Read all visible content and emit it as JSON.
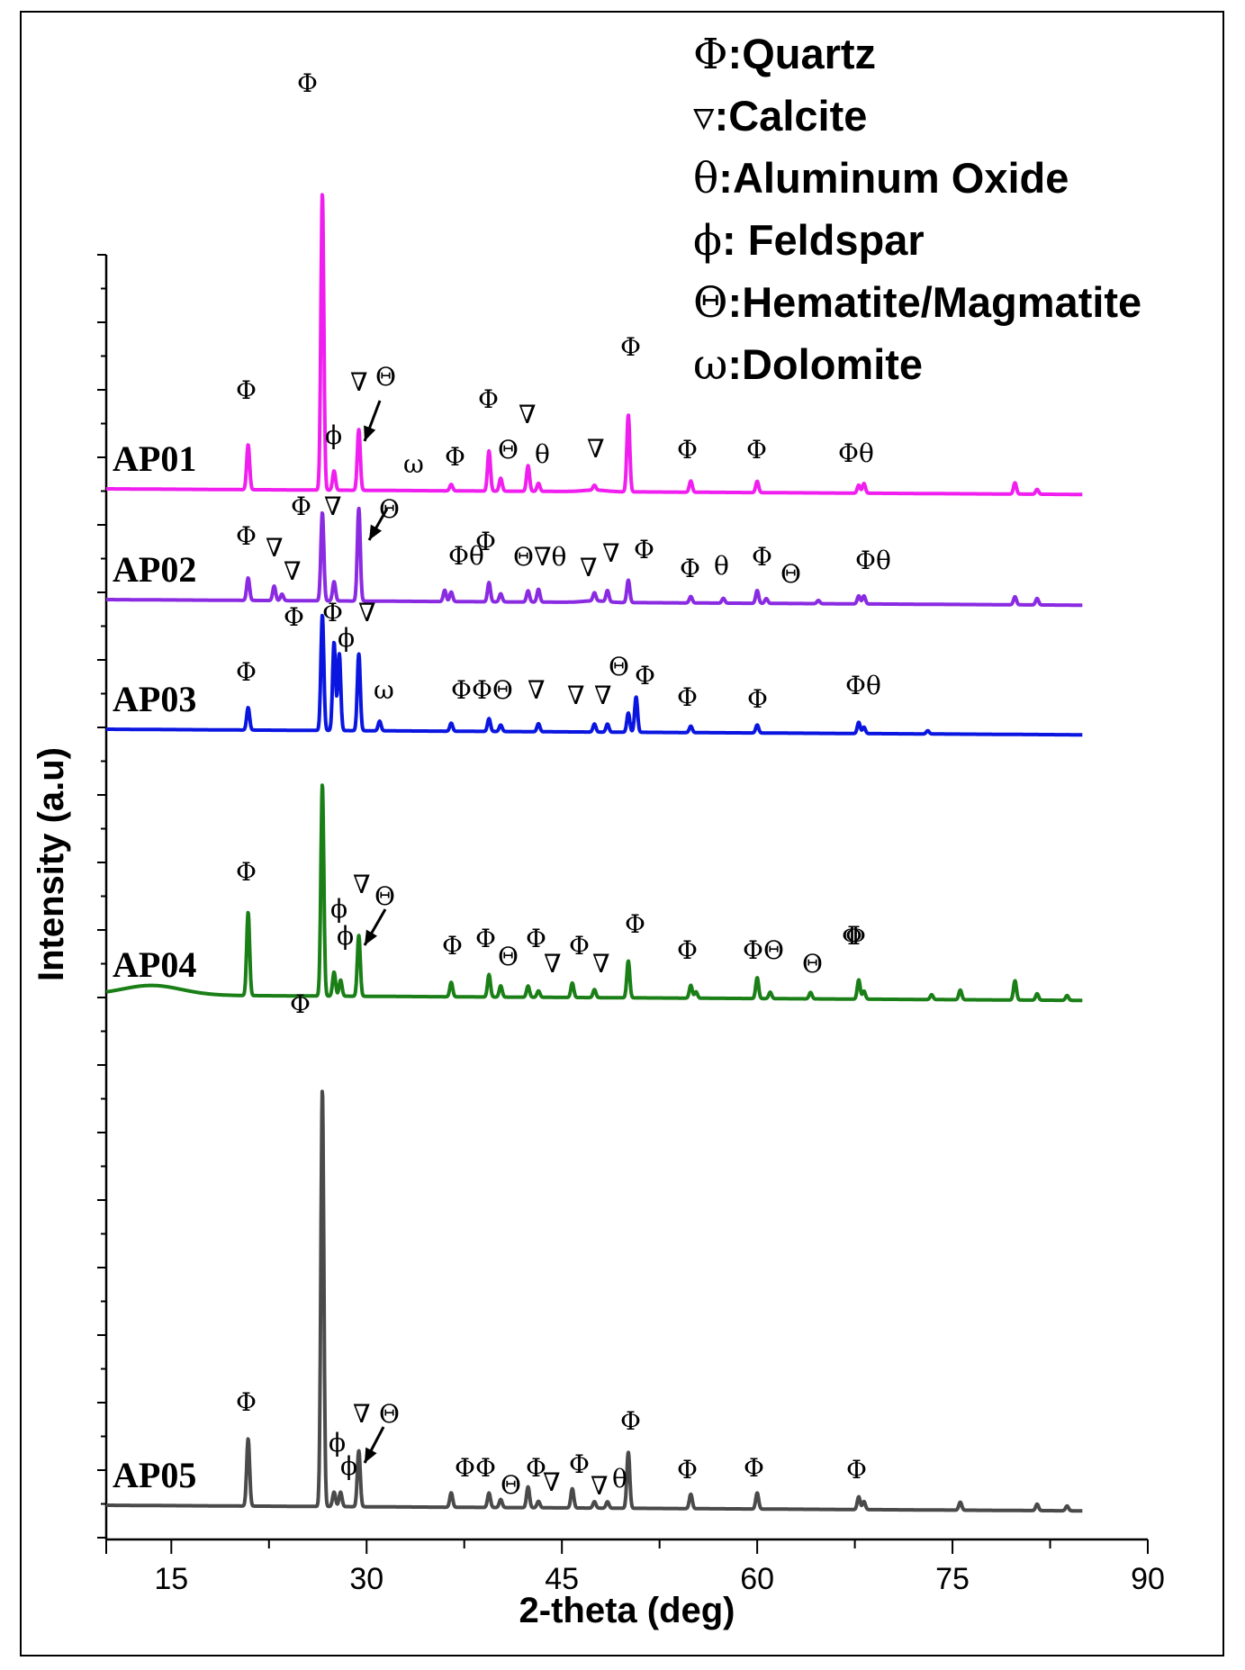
{
  "chart_data": {
    "type": "line",
    "xlabel": "2-theta (deg)",
    "ylabel": "Intensity (a.u)",
    "xlim": [
      10,
      90
    ],
    "xticks": [
      "15",
      "30",
      "45",
      "60",
      "75",
      "90"
    ],
    "grid": false,
    "legend": [
      {
        "symbol": "Φ",
        "text": ":Quartz"
      },
      {
        "symbol": "▿",
        "text": ":Calcite"
      },
      {
        "symbol": "θ",
        "text": ":Aluminum Oxide"
      },
      {
        "symbol": "ϕ",
        "text": ": Feldspar"
      },
      {
        "symbol": "Θ",
        "text": ":Hematite/Magmatite"
      },
      {
        "symbol": "ω",
        "text": ":Dolomite"
      }
    ],
    "series": [
      {
        "name": "AP01",
        "color": "#f01ff0",
        "baseline": 0.0,
        "peaks": [
          [
            20.9,
            0.28
          ],
          [
            26.6,
            1.85
          ],
          [
            27.5,
            0.12
          ],
          [
            29.4,
            0.38
          ],
          [
            36.5,
            0.04
          ],
          [
            39.4,
            0.25
          ],
          [
            40.3,
            0.08
          ],
          [
            42.4,
            0.16
          ],
          [
            43.2,
            0.05
          ],
          [
            47.5,
            0.03
          ],
          [
            50.1,
            0.48
          ],
          [
            54.9,
            0.07
          ],
          [
            60.0,
            0.07
          ],
          [
            67.8,
            0.05
          ],
          [
            68.2,
            0.06
          ],
          [
            79.8,
            0.07
          ],
          [
            81.5,
            0.03
          ]
        ]
      },
      {
        "name": "AP02",
        "color": "#8a2be2",
        "baseline": 0.0,
        "peaks": [
          [
            20.9,
            0.14
          ],
          [
            22.9,
            0.09
          ],
          [
            23.5,
            0.04
          ],
          [
            26.6,
            0.55
          ],
          [
            27.5,
            0.12
          ],
          [
            29.4,
            0.58
          ],
          [
            36.0,
            0.07
          ],
          [
            36.5,
            0.06
          ],
          [
            39.4,
            0.12
          ],
          [
            40.3,
            0.05
          ],
          [
            42.4,
            0.07
          ],
          [
            43.2,
            0.08
          ],
          [
            47.5,
            0.05
          ],
          [
            48.5,
            0.07
          ],
          [
            50.1,
            0.14
          ],
          [
            54.9,
            0.04
          ],
          [
            57.4,
            0.03
          ],
          [
            60.0,
            0.08
          ],
          [
            60.7,
            0.03
          ],
          [
            64.7,
            0.02
          ],
          [
            67.8,
            0.05
          ],
          [
            68.2,
            0.05
          ],
          [
            79.8,
            0.05
          ],
          [
            81.5,
            0.04
          ]
        ]
      },
      {
        "name": "AP03",
        "color": "#0a16e0",
        "baseline": 0.0,
        "peaks": [
          [
            20.9,
            0.14
          ],
          [
            26.6,
            0.72
          ],
          [
            27.5,
            0.55
          ],
          [
            27.9,
            0.48
          ],
          [
            29.4,
            0.48
          ],
          [
            31.0,
            0.06
          ],
          [
            36.5,
            0.05
          ],
          [
            39.4,
            0.08
          ],
          [
            40.3,
            0.04
          ],
          [
            43.2,
            0.05
          ],
          [
            47.5,
            0.05
          ],
          [
            48.5,
            0.05
          ],
          [
            50.1,
            0.12
          ],
          [
            50.7,
            0.22
          ],
          [
            54.9,
            0.04
          ],
          [
            60.0,
            0.05
          ],
          [
            67.8,
            0.07
          ],
          [
            68.2,
            0.04
          ],
          [
            73.1,
            0.02
          ]
        ]
      },
      {
        "name": "AP04",
        "color": "#1a7f16",
        "baseline": 0.0,
        "peaks": [
          [
            20.9,
            0.52
          ],
          [
            26.6,
            1.32
          ],
          [
            27.5,
            0.15
          ],
          [
            28.0,
            0.1
          ],
          [
            29.4,
            0.38
          ],
          [
            36.5,
            0.09
          ],
          [
            39.4,
            0.14
          ],
          [
            40.3,
            0.07
          ],
          [
            42.4,
            0.07
          ],
          [
            43.2,
            0.04
          ],
          [
            45.8,
            0.09
          ],
          [
            47.5,
            0.05
          ],
          [
            50.1,
            0.23
          ],
          [
            54.9,
            0.08
          ],
          [
            55.3,
            0.04
          ],
          [
            60.0,
            0.13
          ],
          [
            61.0,
            0.04
          ],
          [
            64.1,
            0.04
          ],
          [
            67.8,
            0.12
          ],
          [
            68.2,
            0.05
          ],
          [
            73.4,
            0.03
          ],
          [
            75.6,
            0.06
          ],
          [
            79.8,
            0.12
          ],
          [
            81.5,
            0.04
          ],
          [
            83.8,
            0.03
          ]
        ]
      },
      {
        "name": "AP05",
        "color": "#4a4a4a",
        "baseline": 0.0,
        "peaks": [
          [
            20.9,
            0.42
          ],
          [
            26.6,
            2.6
          ],
          [
            27.5,
            0.09
          ],
          [
            28.0,
            0.09
          ],
          [
            29.4,
            0.35
          ],
          [
            36.5,
            0.09
          ],
          [
            39.4,
            0.09
          ],
          [
            40.3,
            0.05
          ],
          [
            42.4,
            0.13
          ],
          [
            43.2,
            0.04
          ],
          [
            45.8,
            0.12
          ],
          [
            47.5,
            0.04
          ],
          [
            48.5,
            0.04
          ],
          [
            50.1,
            0.35
          ],
          [
            54.9,
            0.09
          ],
          [
            60.0,
            0.1
          ],
          [
            67.8,
            0.08
          ],
          [
            68.2,
            0.05
          ],
          [
            75.6,
            0.05
          ],
          [
            81.5,
            0.04
          ],
          [
            83.8,
            0.03
          ]
        ]
      }
    ],
    "peak_labels": [
      {
        "series": "AP01",
        "items": [
          "Φ",
          "Φ",
          "ϕ",
          "∇",
          "Θ",
          "ω",
          "Φ",
          "Φ",
          "Θ",
          "∇",
          "θ",
          "∇",
          "Φ",
          "Φ",
          "Φ",
          "Φθ"
        ]
      },
      {
        "series": "AP02",
        "items": [
          "Φ",
          "∇",
          "∇",
          "Φ",
          "∇",
          "Θ",
          "Φθ",
          "Φ",
          "Θ∇θ",
          "∇",
          "∇",
          "Φ",
          "Φ",
          "θ",
          "Φ",
          "Θ",
          "Φθ"
        ]
      },
      {
        "series": "AP03",
        "items": [
          "Φ",
          "Φ",
          "Φ",
          "ϕ",
          "∇",
          "ω",
          "ΦΦΘ",
          "∇",
          "∇",
          "∇",
          "Θ",
          "Φ",
          "Φ",
          "Φ",
          "Φθ"
        ]
      },
      {
        "series": "AP04",
        "items": [
          "Φ",
          "ϕ",
          "∇",
          "Θ",
          "ϕ",
          "Φ",
          "Φ",
          "Θ",
          "Φ",
          "∇",
          "Φ",
          "∇",
          "Φ",
          "Φ",
          "ΦΘ",
          "Θ",
          "Φ",
          "Φ"
        ]
      },
      {
        "series": "AP05",
        "items": [
          "Φ",
          "Φ",
          "ϕ",
          "∇",
          "Θ",
          "ϕ",
          "ΦΦ",
          "Θ",
          "Φ",
          "∇",
          "Φ",
          "∇",
          "θ",
          "Φ",
          "Φ",
          "Φ",
          "Φ"
        ]
      }
    ]
  }
}
